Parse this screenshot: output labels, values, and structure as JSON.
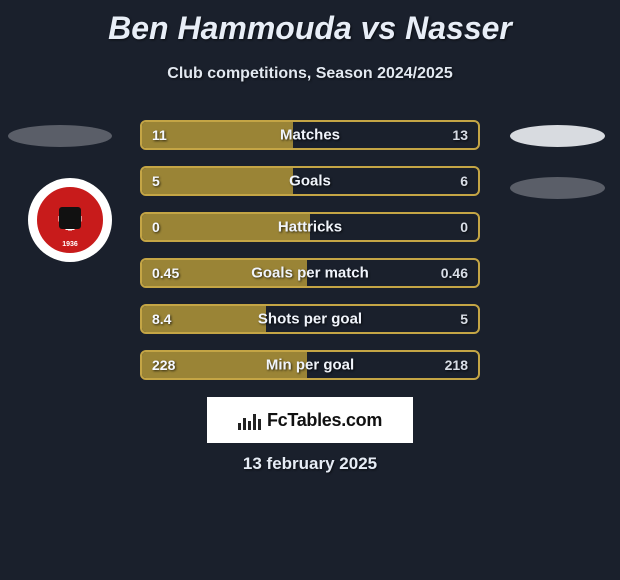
{
  "title": "Ben Hammouda vs Nasser",
  "subtitle": "Club competitions, Season 2024/2025",
  "date_text": "13 february 2025",
  "footer_brand": "FcTables.com",
  "colors": {
    "page_bg": "#1a202c",
    "bar_border": "#c4a545",
    "bar_fill": "#9a8436",
    "text": "#e8eef7",
    "ellipse_dark": "#5a5e68",
    "ellipse_light": "#d8dbe0",
    "badge_red": "#c81b1b"
  },
  "rows": [
    {
      "label": "Matches",
      "left": "11",
      "right": "13",
      "fill_pct": 45
    },
    {
      "label": "Goals",
      "left": "5",
      "right": "6",
      "fill_pct": 45
    },
    {
      "label": "Hattricks",
      "left": "0",
      "right": "0",
      "fill_pct": 50
    },
    {
      "label": "Goals per match",
      "left": "0.45",
      "right": "0.46",
      "fill_pct": 49
    },
    {
      "label": "Shots per goal",
      "left": "8.4",
      "right": "5",
      "fill_pct": 37
    },
    {
      "label": "Min per goal",
      "left": "228",
      "right": "218",
      "fill_pct": 49
    }
  ],
  "club_badge_year": "1936"
}
